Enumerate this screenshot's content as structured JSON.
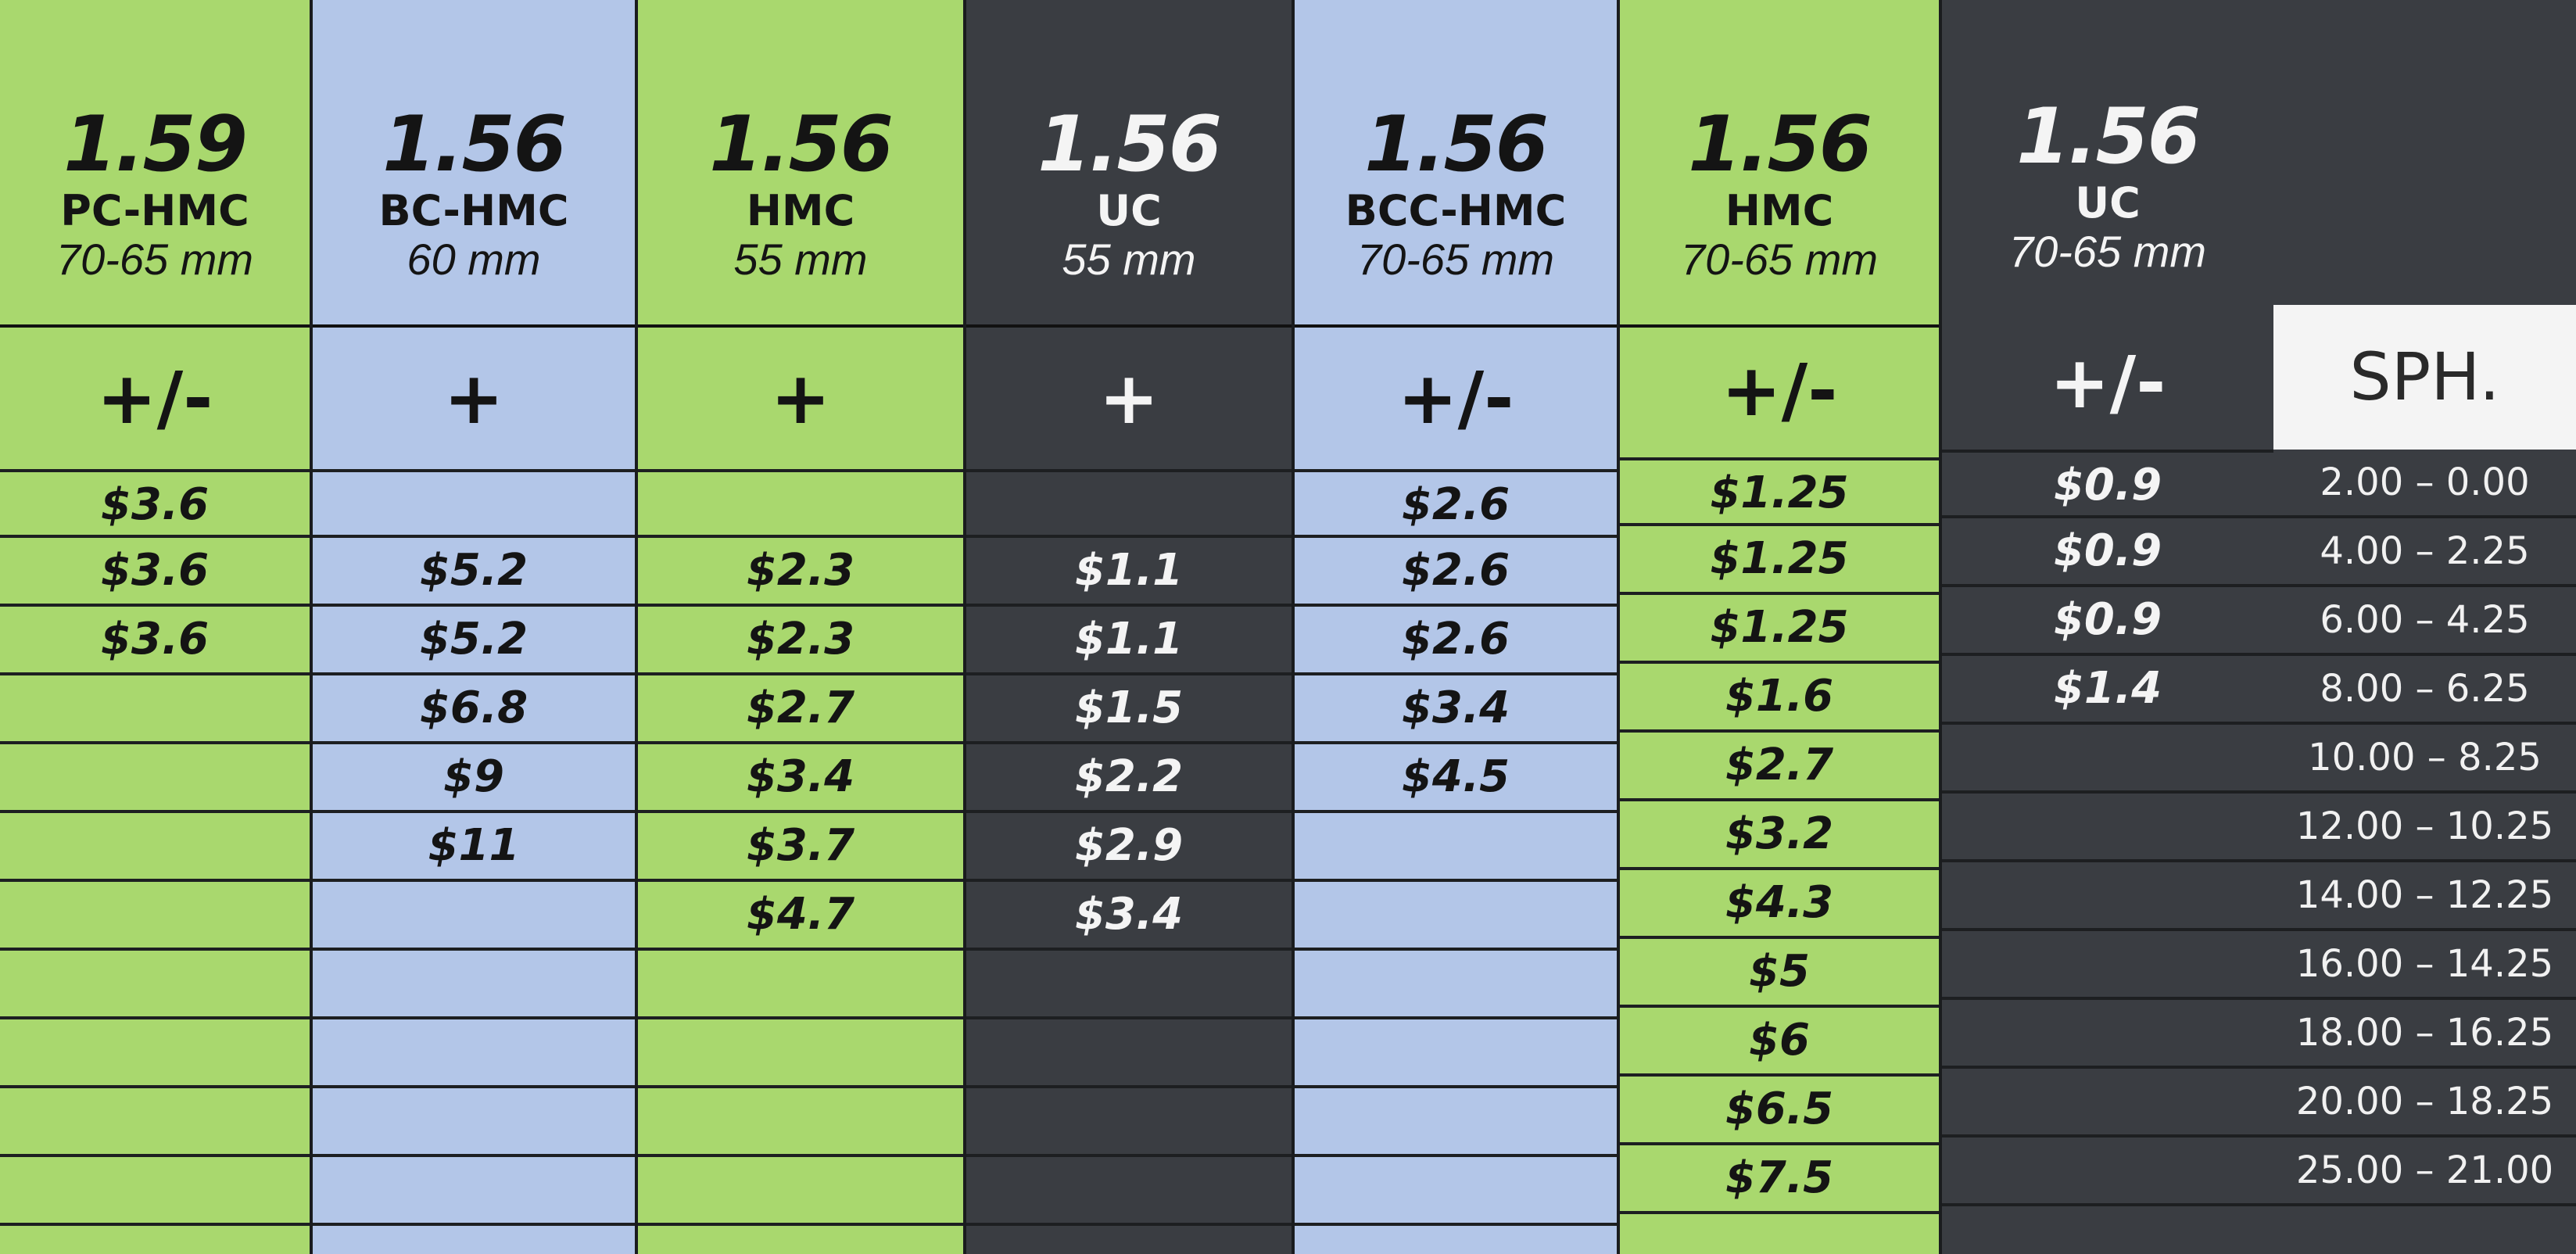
{
  "columns": [
    {
      "index": "1.59",
      "coating": "PC-HMC",
      "size": "70-65 mm",
      "sign": "+/-",
      "prices": [
        "$3.6",
        "$3.6",
        "$3.6",
        "",
        "",
        "",
        "",
        "",
        "",
        "",
        ""
      ]
    },
    {
      "index": "1.56",
      "coating": "BC-HMC",
      "size": "60 mm",
      "sign": "+",
      "prices": [
        "",
        "$5.2",
        "$5.2",
        "$6.8",
        "$9",
        "$11",
        "",
        "",
        "",
        "",
        ""
      ]
    },
    {
      "index": "1.56",
      "coating": "HMC",
      "size": "55 mm",
      "sign": "+",
      "prices": [
        "",
        "$2.3",
        "$2.3",
        "$2.7",
        "$3.4",
        "$3.7",
        "$4.7",
        "",
        "",
        "",
        ""
      ]
    },
    {
      "index": "1.56",
      "coating": "UC",
      "size": "55 mm",
      "sign": "+",
      "prices": [
        "",
        "$1.1",
        "$1.1",
        "$1.5",
        "$2.2",
        "$2.9",
        "$3.4",
        "",
        "",
        "",
        ""
      ]
    },
    {
      "index": "1.56",
      "coating": "BCC-HMC",
      "size": "70-65 mm",
      "sign": "+/-",
      "prices": [
        "$2.6",
        "$2.6",
        "$2.6",
        "$3.4",
        "$4.5",
        "",
        "",
        "",
        "",
        "",
        ""
      ]
    },
    {
      "index": "1.56",
      "coating": "HMC",
      "size": "70-65 mm",
      "sign": "+/-",
      "prices": [
        "$1.25",
        "$1.25",
        "$1.25",
        "$1.6",
        "$2.7",
        "$3.2",
        "$4.3",
        "$5",
        "$6",
        "$6.5",
        "$7.5"
      ]
    },
    {
      "index": "1.56",
      "coating": "UC",
      "size": "70-65 mm",
      "sign": "+/-",
      "prices": [
        "$0.9",
        "$0.9",
        "$0.9",
        "$1.4",
        "",
        "",
        "",
        "",
        "",
        "",
        ""
      ]
    }
  ],
  "sph": {
    "header": "SPH.",
    "ranges": [
      "2.00 – 0.00",
      "4.00 – 2.25",
      "6.00 – 4.25",
      "8.00 – 6.25",
      "10.00 – 8.25",
      "12.00 – 10.25",
      "14.00 – 12.25",
      "16.00 – 14.25",
      "18.00 – 16.25",
      "20.00 – 18.25",
      "25.00 – 21.00"
    ]
  },
  "colors": {
    "green": "#a9d86e",
    "blue": "#b3c6e8",
    "dark": "#3a3d42",
    "sph_header_bg": "#f4f4f4"
  }
}
